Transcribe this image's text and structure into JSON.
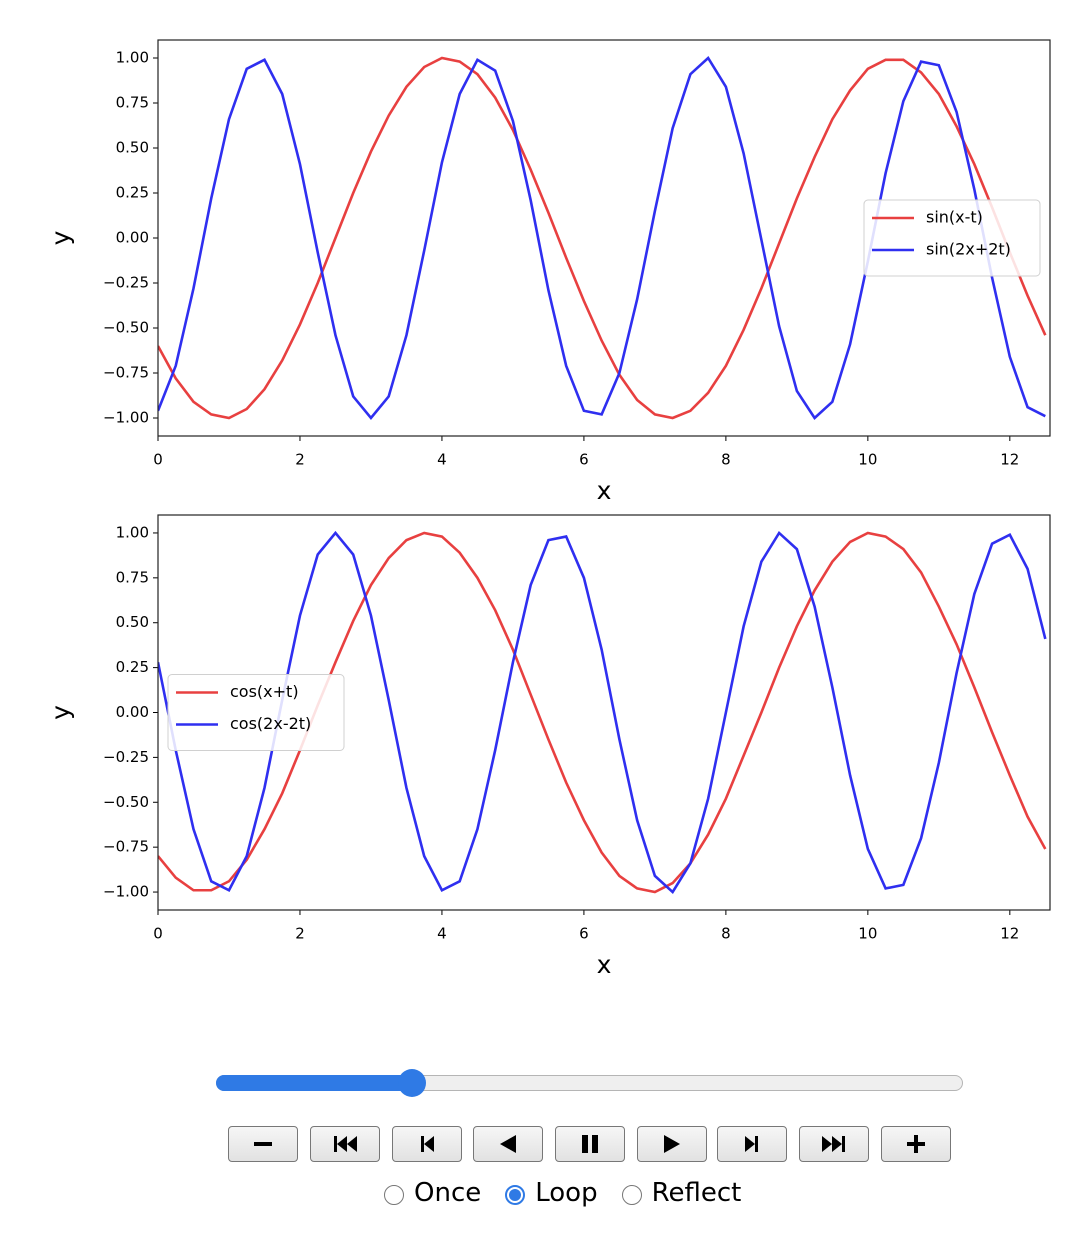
{
  "chart_data": [
    {
      "type": "line",
      "xlabel": "x",
      "ylabel": "y",
      "x": [
        0,
        0.25,
        0.5,
        0.75,
        1,
        1.25,
        1.5,
        1.75,
        2,
        2.25,
        2.5,
        2.75,
        3,
        3.25,
        3.5,
        3.75,
        4,
        4.25,
        4.5,
        4.75,
        5,
        5.25,
        5.5,
        5.75,
        6,
        6.25,
        6.5,
        6.75,
        7,
        7.25,
        7.5,
        7.75,
        8,
        8.25,
        8.5,
        8.75,
        9,
        9.25,
        9.5,
        9.75,
        10,
        10.25,
        10.5,
        10.75,
        11,
        11.25,
        11.5,
        11.75,
        12,
        12.25,
        12.5
      ],
      "series": [
        {
          "name": "sin(x-t)",
          "color": "#e84040",
          "values": [
            -0.6,
            -0.78,
            -0.91,
            -0.98,
            -1.0,
            -0.95,
            -0.84,
            -0.68,
            -0.48,
            -0.25,
            0,
            0.25,
            0.48,
            0.68,
            0.84,
            0.95,
            1.0,
            0.98,
            0.91,
            0.78,
            0.6,
            0.38,
            0.14,
            -0.11,
            -0.35,
            -0.57,
            -0.76,
            -0.9,
            -0.98,
            -1.0,
            -0.96,
            -0.86,
            -0.71,
            -0.51,
            -0.28,
            -0.03,
            0.22,
            0.45,
            0.66,
            0.82,
            0.94,
            0.99,
            0.99,
            0.92,
            0.8,
            0.62,
            0.41,
            0.17,
            -0.08,
            -0.32,
            -0.54
          ]
        },
        {
          "name": "sin(2x+2t)",
          "color": "#2f2ff0",
          "values": [
            -0.96,
            -0.71,
            -0.28,
            0.22,
            0.66,
            0.94,
            0.99,
            0.8,
            0.41,
            -0.08,
            -0.54,
            -0.88,
            -1.0,
            -0.88,
            -0.54,
            -0.07,
            0.42,
            0.8,
            0.99,
            0.93,
            0.65,
            0.21,
            -0.29,
            -0.71,
            -0.96,
            -0.98,
            -0.75,
            -0.34,
            0.15,
            0.61,
            0.91,
            1.0,
            0.84,
            0.47,
            -0.01,
            -0.49,
            -0.85,
            -1.0,
            -0.91,
            -0.59,
            -0.13,
            0.36,
            0.76,
            0.98,
            0.96,
            0.7,
            0.27,
            -0.22,
            -0.66,
            -0.94,
            -0.99
          ]
        }
      ],
      "xlim": [
        0,
        12.566
      ],
      "xticks": [
        0,
        2,
        4,
        6,
        8,
        10,
        12
      ],
      "ylim": [
        -1.1,
        1.1
      ],
      "yticks": [
        {
          "value": -1,
          "label": "−1.00"
        },
        {
          "value": -0.75,
          "label": "−0.75"
        },
        {
          "value": -0.5,
          "label": "−0.50"
        },
        {
          "value": -0.25,
          "label": "−0.25"
        },
        {
          "value": 0,
          "label": "0.00"
        },
        {
          "value": 0.25,
          "label": "0.25"
        },
        {
          "value": 0.5,
          "label": "0.50"
        },
        {
          "value": 0.75,
          "label": "0.75"
        },
        {
          "value": 1,
          "label": "1.00"
        }
      ],
      "legend": "center right"
    },
    {
      "type": "line",
      "xlabel": "x",
      "ylabel": "y",
      "x": [
        0,
        0.25,
        0.5,
        0.75,
        1,
        1.25,
        1.5,
        1.75,
        2,
        2.25,
        2.5,
        2.75,
        3,
        3.25,
        3.5,
        3.75,
        4,
        4.25,
        4.5,
        4.75,
        5,
        5.25,
        5.5,
        5.75,
        6,
        6.25,
        6.5,
        6.75,
        7,
        7.25,
        7.5,
        7.75,
        8,
        8.25,
        8.5,
        8.75,
        9,
        9.25,
        9.5,
        9.75,
        10,
        10.25,
        10.5,
        10.75,
        11,
        11.25,
        11.5,
        11.75,
        12,
        12.25,
        12.5
      ],
      "series": [
        {
          "name": "cos(x+t)",
          "color": "#e84040",
          "values": [
            -0.8,
            -0.92,
            -0.99,
            -0.99,
            -0.94,
            -0.82,
            -0.65,
            -0.45,
            -0.21,
            0.04,
            0.28,
            0.51,
            0.71,
            0.86,
            0.96,
            1.0,
            0.98,
            0.89,
            0.75,
            0.57,
            0.35,
            0.1,
            -0.15,
            -0.39,
            -0.6,
            -0.78,
            -0.91,
            -0.98,
            -1.0,
            -0.95,
            -0.84,
            -0.68,
            -0.48,
            -0.24,
            0,
            0.25,
            0.48,
            0.68,
            0.84,
            0.95,
            1.0,
            0.98,
            0.91,
            0.78,
            0.59,
            0.38,
            0.14,
            -0.11,
            -0.35,
            -0.58,
            -0.76
          ]
        },
        {
          "name": "cos(2x-2t)",
          "color": "#2f2ff0",
          "values": [
            0.28,
            -0.21,
            -0.65,
            -0.94,
            -0.99,
            -0.8,
            -0.42,
            0.07,
            0.54,
            0.88,
            1.0,
            0.88,
            0.54,
            0.07,
            -0.42,
            -0.8,
            -0.99,
            -0.94,
            -0.65,
            -0.21,
            0.28,
            0.71,
            0.96,
            0.98,
            0.75,
            0.35,
            -0.15,
            -0.6,
            -0.91,
            -1.0,
            -0.84,
            -0.48,
            0,
            0.48,
            0.84,
            1.0,
            0.91,
            0.59,
            0.14,
            -0.35,
            -0.76,
            -0.98,
            -0.96,
            -0.7,
            -0.28,
            0.22,
            0.66,
            0.94,
            0.99,
            0.8,
            0.41
          ]
        }
      ],
      "xlim": [
        0,
        12.566
      ],
      "xticks": [
        0,
        2,
        4,
        6,
        8,
        10,
        12
      ],
      "ylim": [
        -1.1,
        1.1
      ],
      "yticks": [
        {
          "value": -1,
          "label": "−1.00"
        },
        {
          "value": -0.75,
          "label": "−0.75"
        },
        {
          "value": -0.5,
          "label": "−0.50"
        },
        {
          "value": -0.25,
          "label": "−0.25"
        },
        {
          "value": 0,
          "label": "0.00"
        },
        {
          "value": 0.25,
          "label": "0.25"
        },
        {
          "value": 0.5,
          "label": "0.50"
        },
        {
          "value": 0.75,
          "label": "0.75"
        },
        {
          "value": 1,
          "label": "1.00"
        }
      ],
      "legend": "center left"
    }
  ],
  "playback_modes": [
    "Once",
    "Loop",
    "Reflect"
  ]
}
